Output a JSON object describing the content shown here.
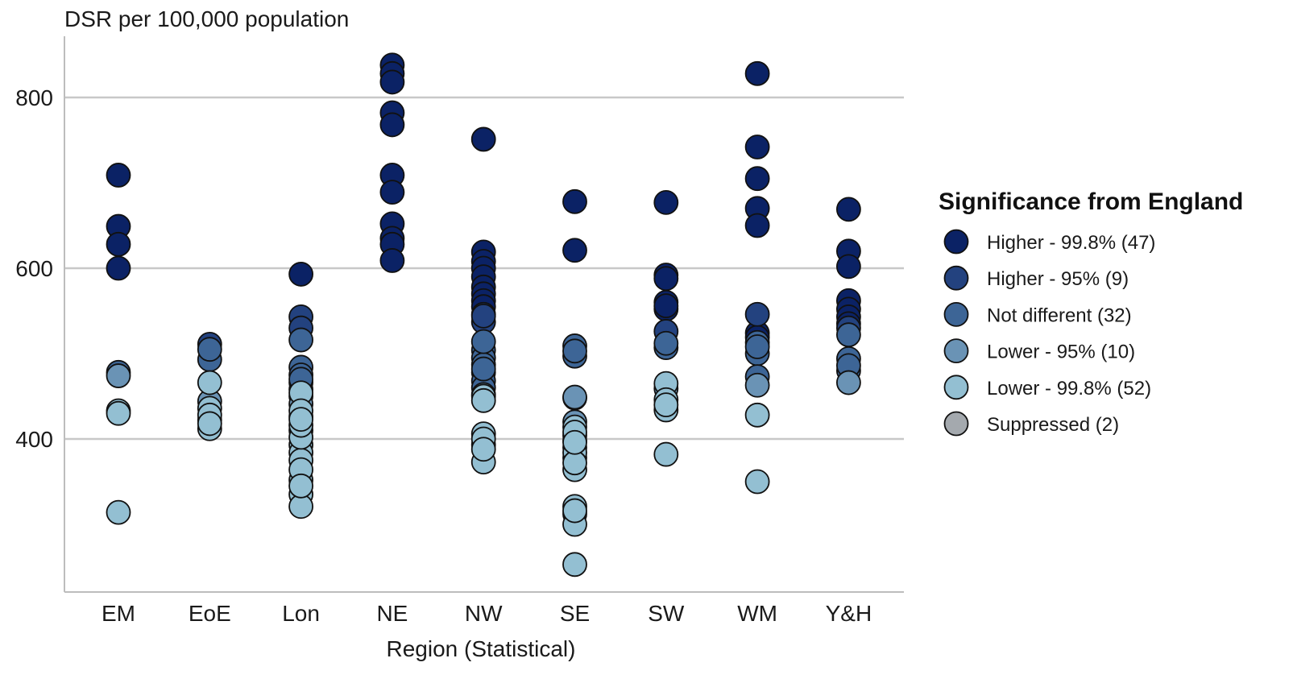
{
  "chart_data": {
    "type": "scatter",
    "title": "",
    "ylabel": "DSR per 100,000 population",
    "xlabel": "Region (Statistical)",
    "categories": [
      "EM",
      "EoE",
      "Lon",
      "NE",
      "NW",
      "SE",
      "SW",
      "WM",
      "Y&H"
    ],
    "ylim": [
      230,
      870
    ],
    "yticks": [
      400,
      600,
      800
    ],
    "grid": true,
    "legend": {
      "title": "Significance from England",
      "position": "right",
      "entries": [
        {
          "label": "Higher - 99.8%",
          "count": "(47)",
          "color": "#0b2265"
        },
        {
          "label": "Higher - 95%",
          "count": "(9)",
          "color": "#23427f"
        },
        {
          "label": "Not different",
          "count": "(32)",
          "color": "#3d6596"
        },
        {
          "label": "Lower - 95%",
          "count": "(10)",
          "color": "#6a93b5"
        },
        {
          "label": "Lower - 99.8%",
          "count": "(52)",
          "color": "#93bfd2"
        },
        {
          "label": "Suppressed",
          "count": "(2)",
          "color": "#a4a9ae"
        }
      ]
    },
    "series": [
      {
        "name": "Higher - 99.8%",
        "points": [
          {
            "x": "EM",
            "y": 709
          },
          {
            "x": "EM",
            "y": 649
          },
          {
            "x": "EM",
            "y": 628
          },
          {
            "x": "EM",
            "y": 600
          },
          {
            "x": "Lon",
            "y": 593
          },
          {
            "x": "NE",
            "y": 838
          },
          {
            "x": "NE",
            "y": 828
          },
          {
            "x": "NE",
            "y": 818
          },
          {
            "x": "NE",
            "y": 782
          },
          {
            "x": "NE",
            "y": 768
          },
          {
            "x": "NE",
            "y": 709
          },
          {
            "x": "NE",
            "y": 689
          },
          {
            "x": "NE",
            "y": 652
          },
          {
            "x": "NE",
            "y": 635
          },
          {
            "x": "NE",
            "y": 628
          },
          {
            "x": "NE",
            "y": 609
          },
          {
            "x": "NW",
            "y": 751
          },
          {
            "x": "NW",
            "y": 619
          },
          {
            "x": "NW",
            "y": 608
          },
          {
            "x": "NW",
            "y": 600
          },
          {
            "x": "NW",
            "y": 590
          },
          {
            "x": "NW",
            "y": 578
          },
          {
            "x": "NW",
            "y": 570
          },
          {
            "x": "SE",
            "y": 678
          },
          {
            "x": "SE",
            "y": 621
          },
          {
            "x": "SW",
            "y": 677
          },
          {
            "x": "SW",
            "y": 592
          },
          {
            "x": "SW",
            "y": 588
          },
          {
            "x": "SW",
            "y": 560
          },
          {
            "x": "SW",
            "y": 552
          },
          {
            "x": "WM",
            "y": 828
          },
          {
            "x": "WM",
            "y": 742
          },
          {
            "x": "WM",
            "y": 705
          },
          {
            "x": "WM",
            "y": 670
          },
          {
            "x": "WM",
            "y": 650
          },
          {
            "x": "WM",
            "y": 524
          },
          {
            "x": "WM",
            "y": 519
          },
          {
            "x": "Y&H",
            "y": 669
          },
          {
            "x": "Y&H",
            "y": 620
          },
          {
            "x": "Y&H",
            "y": 602
          },
          {
            "x": "Y&H",
            "y": 562
          },
          {
            "x": "Y&H",
            "y": 552
          },
          {
            "x": "Y&H",
            "y": 543
          },
          {
            "x": "Y&H",
            "y": 535
          },
          {
            "x": "NW",
            "y": 562
          },
          {
            "x": "NW",
            "y": 555
          },
          {
            "x": "SW",
            "y": 556
          }
        ]
      },
      {
        "name": "Higher - 95%",
        "points": [
          {
            "x": "EoE",
            "y": 511
          },
          {
            "x": "Lon",
            "y": 543
          },
          {
            "x": "NW",
            "y": 546
          },
          {
            "x": "NW",
            "y": 537
          },
          {
            "x": "WM",
            "y": 546
          },
          {
            "x": "Y&H",
            "y": 530
          },
          {
            "x": "SW",
            "y": 526
          },
          {
            "x": "Lon",
            "y": 530
          },
          {
            "x": "NW",
            "y": 544
          }
        ]
      },
      {
        "name": "Not different",
        "points": [
          {
            "x": "EM",
            "y": 478
          },
          {
            "x": "EoE",
            "y": 493
          },
          {
            "x": "Lon",
            "y": 516
          },
          {
            "x": "Lon",
            "y": 484
          },
          {
            "x": "Lon",
            "y": 475
          },
          {
            "x": "Lon",
            "y": 466
          },
          {
            "x": "NW",
            "y": 504
          },
          {
            "x": "NW",
            "y": 495
          },
          {
            "x": "NW",
            "y": 487
          },
          {
            "x": "NW",
            "y": 478
          },
          {
            "x": "NW",
            "y": 468
          },
          {
            "x": "SE",
            "y": 509
          },
          {
            "x": "SE",
            "y": 497
          },
          {
            "x": "SW",
            "y": 507
          },
          {
            "x": "WM",
            "y": 513
          },
          {
            "x": "WM",
            "y": 500
          },
          {
            "x": "Y&H",
            "y": 522
          },
          {
            "x": "Y&H",
            "y": 494
          },
          {
            "x": "Lon",
            "y": 458
          },
          {
            "x": "Lon",
            "y": 450
          },
          {
            "x": "NW",
            "y": 460
          },
          {
            "x": "SE",
            "y": 448
          },
          {
            "x": "WM",
            "y": 473
          },
          {
            "x": "Y&H",
            "y": 480
          },
          {
            "x": "EoE",
            "y": 505
          },
          {
            "x": "SW",
            "y": 512
          },
          {
            "x": "NW",
            "y": 514
          },
          {
            "x": "Lon",
            "y": 470
          },
          {
            "x": "WM",
            "y": 508
          },
          {
            "x": "Y&H",
            "y": 486
          },
          {
            "x": "SE",
            "y": 503
          },
          {
            "x": "NW",
            "y": 482
          }
        ]
      },
      {
        "name": "Lower - 95%",
        "points": [
          {
            "x": "EM",
            "y": 474
          },
          {
            "x": "EoE",
            "y": 444
          },
          {
            "x": "Lon",
            "y": 441
          },
          {
            "x": "NW",
            "y": 452
          },
          {
            "x": "SE",
            "y": 449
          },
          {
            "x": "SW",
            "y": 459
          },
          {
            "x": "WM",
            "y": 463
          },
          {
            "x": "Y&H",
            "y": 466
          },
          {
            "x": "Lon",
            "y": 426
          },
          {
            "x": "SE",
            "y": 420
          }
        ]
      },
      {
        "name": "Lower - 99.8%",
        "points": [
          {
            "x": "EM",
            "y": 433
          },
          {
            "x": "EM",
            "y": 314
          },
          {
            "x": "EoE",
            "y": 466
          },
          {
            "x": "EoE",
            "y": 436
          },
          {
            "x": "EoE",
            "y": 422
          },
          {
            "x": "EoE",
            "y": 412
          },
          {
            "x": "Lon",
            "y": 454
          },
          {
            "x": "Lon",
            "y": 433
          },
          {
            "x": "Lon",
            "y": 410
          },
          {
            "x": "Lon",
            "y": 393
          },
          {
            "x": "Lon",
            "y": 384
          },
          {
            "x": "Lon",
            "y": 375
          },
          {
            "x": "Lon",
            "y": 352
          },
          {
            "x": "Lon",
            "y": 335
          },
          {
            "x": "Lon",
            "y": 321
          },
          {
            "x": "Lon",
            "y": 402
          },
          {
            "x": "NW",
            "y": 450
          },
          {
            "x": "NW",
            "y": 406
          },
          {
            "x": "NW",
            "y": 393
          },
          {
            "x": "NW",
            "y": 373
          },
          {
            "x": "SE",
            "y": 414
          },
          {
            "x": "SE",
            "y": 404
          },
          {
            "x": "SE",
            "y": 398
          },
          {
            "x": "SE",
            "y": 390
          },
          {
            "x": "SE",
            "y": 378
          },
          {
            "x": "SE",
            "y": 364
          },
          {
            "x": "SE",
            "y": 321
          },
          {
            "x": "SE",
            "y": 312
          },
          {
            "x": "SE",
            "y": 300
          },
          {
            "x": "SE",
            "y": 253
          },
          {
            "x": "SW",
            "y": 465
          },
          {
            "x": "SW",
            "y": 446
          },
          {
            "x": "SW",
            "y": 434
          },
          {
            "x": "SW",
            "y": 382
          },
          {
            "x": "WM",
            "y": 428
          },
          {
            "x": "WM",
            "y": 350
          },
          {
            "x": "Lon",
            "y": 364
          },
          {
            "x": "Lon",
            "y": 345
          },
          {
            "x": "NW",
            "y": 445
          },
          {
            "x": "NW",
            "y": 400
          },
          {
            "x": "SE",
            "y": 408
          },
          {
            "x": "SE",
            "y": 384
          },
          {
            "x": "SE",
            "y": 372
          },
          {
            "x": "SW",
            "y": 440
          },
          {
            "x": "EoE",
            "y": 428
          },
          {
            "x": "EoE",
            "y": 418
          },
          {
            "x": "Lon",
            "y": 416
          },
          {
            "x": "Lon",
            "y": 423
          },
          {
            "x": "SE",
            "y": 316
          },
          {
            "x": "SE",
            "y": 396
          },
          {
            "x": "NW",
            "y": 388
          },
          {
            "x": "EM",
            "y": 430
          }
        ]
      }
    ]
  }
}
